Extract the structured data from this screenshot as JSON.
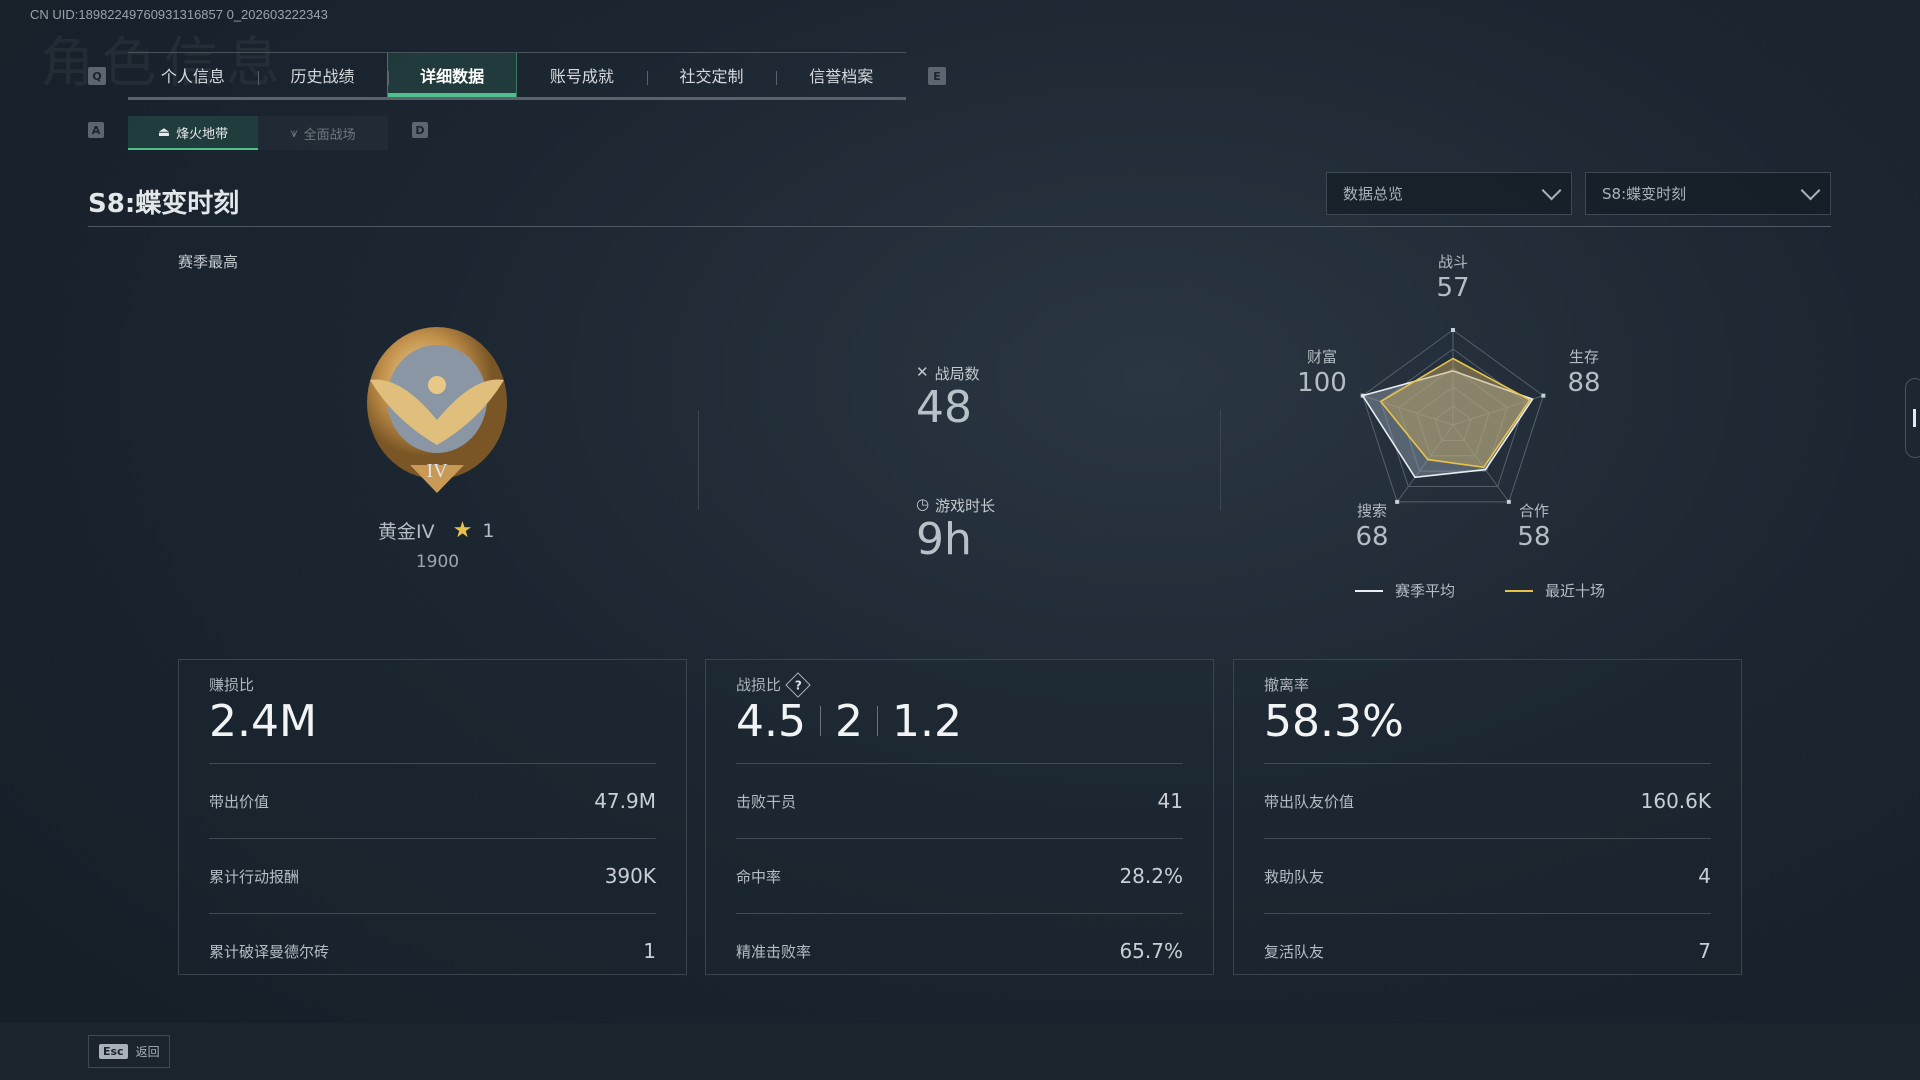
{
  "uid": "CN UID:18982249760931316857 0_202603222343",
  "ghost_title": "角色信息",
  "nav": {
    "prev_key": "Q",
    "next_key": "E",
    "tabs": [
      {
        "label": "个人信息"
      },
      {
        "label": "历史战绩"
      },
      {
        "label": "详细数据",
        "active": true
      },
      {
        "label": "账号成就"
      },
      {
        "label": "社交定制"
      },
      {
        "label": "信誉档案"
      }
    ],
    "sub_prev_key": "A",
    "sub_next_key": "D",
    "subtabs": [
      {
        "label": "烽火地带",
        "active": true
      },
      {
        "label": "全面战场"
      }
    ]
  },
  "page_title": "S8:蝶变时刻",
  "filters": {
    "view": "数据总览",
    "season": "S8:蝶变时刻"
  },
  "rank": {
    "heading": "赛季最高",
    "name": "黄金IV",
    "stars": "1",
    "score": "1900",
    "emblem_text": "IV"
  },
  "summary": {
    "matches_label": "战局数",
    "matches": "48",
    "playtime_label": "游戏时长",
    "playtime": "9h"
  },
  "radar": {
    "axes": [
      {
        "label": "战斗",
        "value": "57"
      },
      {
        "label": "生存",
        "value": "88"
      },
      {
        "label": "合作",
        "value": "58"
      },
      {
        "label": "搜索",
        "value": "68"
      },
      {
        "label": "财富",
        "value": "100"
      }
    ],
    "max": 100,
    "series": [
      {
        "name": "赛季平均",
        "color": "#e8edf2",
        "values": [
          57,
          88,
          58,
          68,
          100
        ]
      },
      {
        "name": "最近十场",
        "color": "#e8c34a",
        "values": [
          70,
          85,
          55,
          45,
          80
        ]
      }
    ]
  },
  "cards": [
    {
      "title": "赚损比",
      "values": [
        "2.4M"
      ],
      "rows": [
        {
          "label": "带出价值",
          "value": "47.9M"
        },
        {
          "label": "累计行动报酬",
          "value": "390K"
        },
        {
          "label": "累计破译曼德尔砖",
          "value": "1"
        }
      ]
    },
    {
      "title": "战损比",
      "help": "?",
      "values": [
        "4.5",
        "2",
        "1.2"
      ],
      "rows": [
        {
          "label": "击败干员",
          "value": "41"
        },
        {
          "label": "命中率",
          "value": "28.2%"
        },
        {
          "label": "精准击败率",
          "value": "65.7%"
        }
      ]
    },
    {
      "title": "撤离率",
      "values": [
        "58.3%"
      ],
      "rows": [
        {
          "label": "带出队友价值",
          "value": "160.6K"
        },
        {
          "label": "救助队友",
          "value": "4"
        },
        {
          "label": "复活队友",
          "value": "7"
        }
      ]
    }
  ],
  "footer": {
    "esc_key": "Esc",
    "back_label": "返回"
  }
}
